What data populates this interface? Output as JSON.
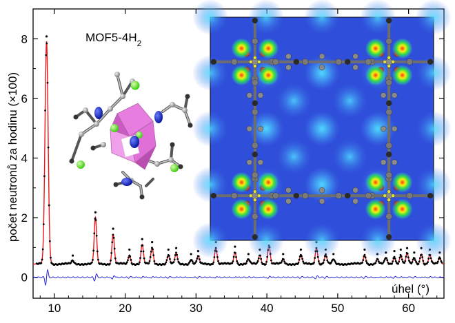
{
  "chart_data": {
    "type": "line",
    "title": "",
    "annotation": {
      "base": "MOF5-4H",
      "subscript": "2"
    },
    "xlabel": "úhel (°)",
    "ylabel": "počet neutronů za hodinu (×100)",
    "xlim": [
      7,
      65
    ],
    "ylim": [
      -0.7,
      9.0
    ],
    "xticks": [
      10,
      20,
      30,
      40,
      50,
      60
    ],
    "yticks": [
      0,
      2,
      4,
      6,
      8
    ],
    "grid": false,
    "baseline": 0.45,
    "peaks": [
      {
        "x": 8.9,
        "y": 7.9
      },
      {
        "x": 12.6,
        "y": 0.55
      },
      {
        "x": 15.8,
        "y": 2.0
      },
      {
        "x": 18.3,
        "y": 1.45
      },
      {
        "x": 20.6,
        "y": 0.75
      },
      {
        "x": 22.4,
        "y": 1.1
      },
      {
        "x": 23.8,
        "y": 1.0
      },
      {
        "x": 26.1,
        "y": 0.75
      },
      {
        "x": 27.2,
        "y": 0.8
      },
      {
        "x": 29.3,
        "y": 0.6
      },
      {
        "x": 30.3,
        "y": 0.7
      },
      {
        "x": 32.8,
        "y": 1.0
      },
      {
        "x": 35.5,
        "y": 0.85
      },
      {
        "x": 37.4,
        "y": 0.6
      },
      {
        "x": 39.0,
        "y": 0.75
      },
      {
        "x": 40.3,
        "y": 1.1
      },
      {
        "x": 42.3,
        "y": 0.6
      },
      {
        "x": 44.8,
        "y": 0.75
      },
      {
        "x": 47.0,
        "y": 1.0
      },
      {
        "x": 48.3,
        "y": 0.75
      },
      {
        "x": 49.4,
        "y": 0.6
      },
      {
        "x": 53.8,
        "y": 0.75
      },
      {
        "x": 55.6,
        "y": 0.6
      },
      {
        "x": 56.8,
        "y": 0.65
      },
      {
        "x": 58.0,
        "y": 0.7
      },
      {
        "x": 58.9,
        "y": 0.75
      },
      {
        "x": 59.8,
        "y": 0.8
      },
      {
        "x": 60.8,
        "y": 0.65
      },
      {
        "x": 61.8,
        "y": 0.8
      },
      {
        "x": 63.0,
        "y": 0.75
      },
      {
        "x": 64.4,
        "y": 0.65
      }
    ],
    "series": [
      {
        "role": "observed",
        "color": "#000000",
        "marker": "dot"
      },
      {
        "role": "calculated",
        "color": "#e8141a",
        "marker": "line"
      },
      {
        "role": "difference",
        "color": "#2525d8",
        "marker": "line",
        "offset": 0
      }
    ],
    "inset_structure": {
      "polyhedra_color": "#e87de0",
      "sphere_color": "#66dd2a",
      "atom_color": "#a5a5a5",
      "lobe_color": "#1d2ec9"
    },
    "inset_density_map": {
      "background_color": "#2f4ed9",
      "hotspot_colors": [
        "#ff3a1a",
        "#f2f20f",
        "#2ed94a"
      ],
      "atom_color": "#7a7a7a",
      "oxygen_color": "#d22020"
    }
  }
}
